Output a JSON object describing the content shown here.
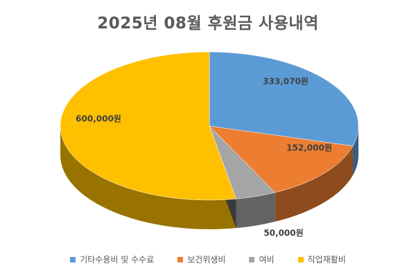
{
  "chart_data": {
    "type": "pie",
    "title": "2025년 08월 후원금 사용내역",
    "categories": [
      "기타수용비 및 수수료",
      "보건위생비",
      "여비",
      "직업재활비"
    ],
    "values": [
      333070,
      152000,
      50000,
      600000
    ],
    "data_labels": [
      "333,070원",
      "152,000원",
      "50,000원",
      "600,000원"
    ],
    "colors": [
      "#5B9BD5",
      "#ED7D31",
      "#A5A5A5",
      "#FFC000"
    ],
    "style": "3d",
    "legend_position": "bottom"
  }
}
